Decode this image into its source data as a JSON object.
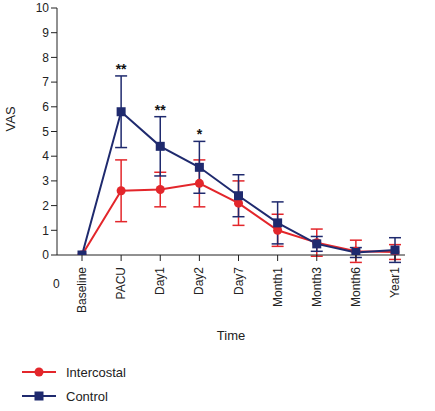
{
  "chart_data": {
    "type": "line",
    "x_label": "Time",
    "y_label": "VAS",
    "categories": [
      "Baseline",
      "PACU",
      "Day1",
      "Day2",
      "Day7",
      "Month1",
      "Month3",
      "Month6",
      "Year1"
    ],
    "series": [
      {
        "name": "Intercostal",
        "color": "#e3262b",
        "marker": "circle",
        "values": [
          0,
          2.6,
          2.65,
          2.9,
          2.1,
          1.0,
          0.5,
          0.15,
          0.12
        ],
        "errors": [
          0,
          1.25,
          0.7,
          0.95,
          0.9,
          0.65,
          0.55,
          0.45,
          0.3
        ]
      },
      {
        "name": "Control",
        "color": "#1f2a6e",
        "marker": "square",
        "values": [
          0,
          5.8,
          4.4,
          3.55,
          2.4,
          1.3,
          0.45,
          0.1,
          0.2
        ],
        "errors": [
          0,
          1.45,
          1.2,
          1.05,
          0.85,
          0.85,
          0.3,
          0.2,
          0.5
        ]
      }
    ],
    "ylim": [
      0,
      10
    ],
    "yticks": [
      0,
      1,
      2,
      3,
      4,
      5,
      6,
      7,
      8,
      9,
      10
    ],
    "grid": false,
    "x_origin_label": "0",
    "annotations": [
      {
        "category": "PACU",
        "text": "**"
      },
      {
        "category": "Day1",
        "text": "**"
      },
      {
        "category": "Day2",
        "text": "*"
      }
    ]
  }
}
